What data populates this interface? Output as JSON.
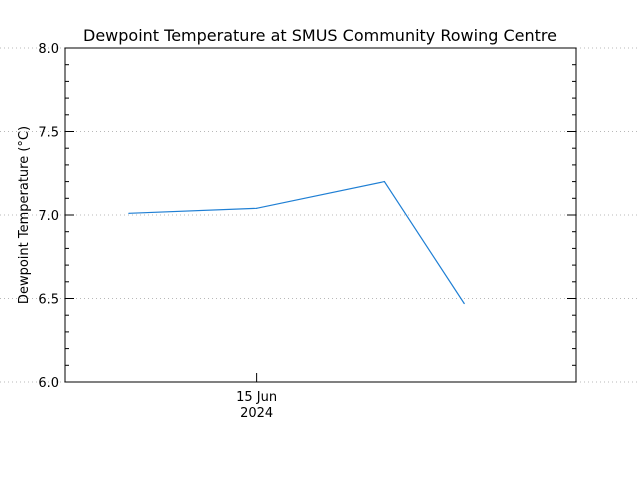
{
  "chart_data": {
    "type": "line",
    "title": "Dewpoint Temperature at SMUS Community Rowing Centre",
    "xlabel": "",
    "ylabel": "Dewpoint Temperature (°C)",
    "ylim": [
      6.0,
      8.0
    ],
    "yticks": [
      "6.0",
      "6.5",
      "7.0",
      "7.5",
      "8.0"
    ],
    "ytick_values": [
      6.0,
      6.5,
      7.0,
      7.5,
      8.0
    ],
    "xlim": [
      0,
      4
    ],
    "xtick": {
      "label_line1": "15 Jun",
      "label_line2": "2024",
      "x": 1.5
    },
    "grid": true,
    "series": [
      {
        "name": "Dewpoint Temperature",
        "color": "#1f7fd4",
        "x": [
          0.5,
          1.5,
          2.5,
          3.125
        ],
        "values": [
          7.01,
          7.04,
          7.2,
          6.47
        ]
      }
    ]
  }
}
